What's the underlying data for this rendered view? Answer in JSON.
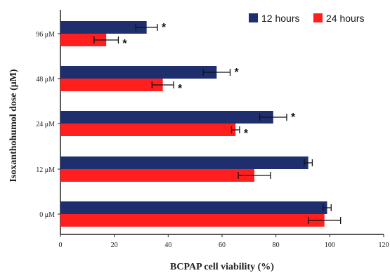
{
  "chart_data": {
    "type": "bar",
    "orientation": "horizontal",
    "categories": [
      "96 μM",
      "48 μM",
      "24 μM",
      "12 μM",
      "0 μM"
    ],
    "series": [
      {
        "name": "12 hours",
        "color": "#1f2f6e",
        "values": [
          32,
          58,
          79,
          92,
          99
        ],
        "errors": [
          4,
          5,
          5,
          1.5,
          1.5
        ],
        "significance": [
          "*",
          "*",
          "*",
          "",
          ""
        ]
      },
      {
        "name": "24 hours",
        "color": "#ff1f1f",
        "values": [
          17,
          38,
          65,
          72,
          98
        ],
        "errors": [
          4.5,
          4,
          1.5,
          6,
          6
        ],
        "significance": [
          "*",
          "*",
          "*",
          "",
          ""
        ]
      }
    ],
    "xlabel": "BCPAP cell viability (%)",
    "ylabel": "Isoxanthohumol dose (μM)",
    "xlim": [
      0,
      120
    ],
    "xticks": [
      "0",
      "20",
      "40",
      "60",
      "80",
      "100",
      "120"
    ],
    "grid": false,
    "legend_position": "top-right"
  }
}
